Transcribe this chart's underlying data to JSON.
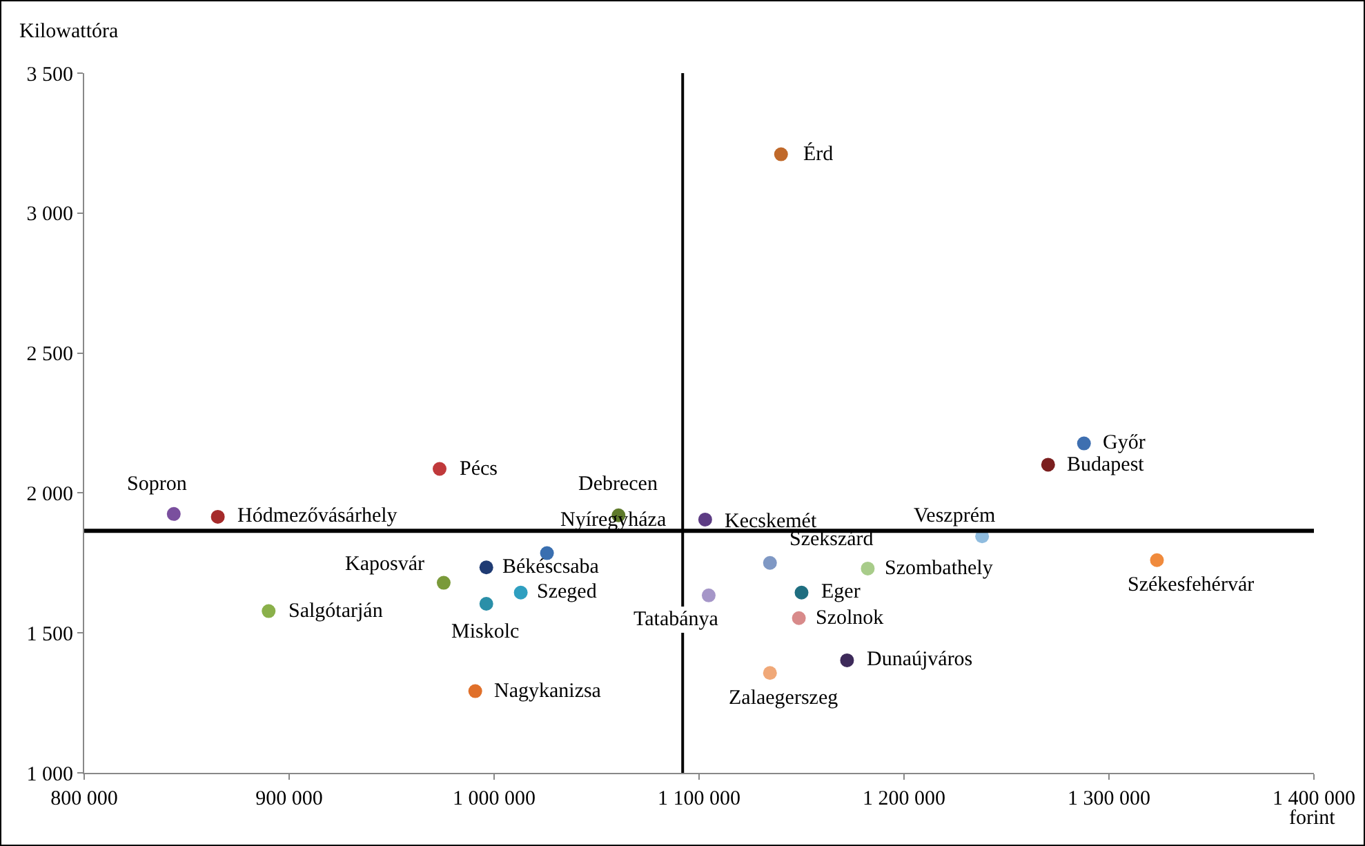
{
  "chart_data": {
    "type": "scatter",
    "xlabel": "forint",
    "ylabel": "Kilowattóra",
    "x": [
      1140000,
      1287800,
      1270300,
      1238100,
      1323400,
      843700,
      865200,
      973400,
      1060700,
      1103000,
      1025800,
      996200,
      975400,
      1013000,
      996200,
      890000,
      990800,
      1134600,
      1182300,
      1104700,
      1150000,
      1148700,
      1172200,
      1134600
    ],
    "values": [
      3210,
      2177,
      2101,
      1845,
      1760,
      1925,
      1915,
      2086,
      1920,
      1905,
      1785,
      1734,
      1679,
      1644,
      1604,
      1578,
      1292,
      1750,
      1730,
      1634,
      1644,
      1553,
      1402,
      1357
    ],
    "colors": [
      "#c0692a",
      "#3e6fb0",
      "#7b1f1f",
      "#8fbcdf",
      "#f08a3c",
      "#7a4f9e",
      "#a52a2a",
      "#c0393b",
      "#5e7a2a",
      "#5d3c84",
      "#3a6fb0",
      "#1f3b73",
      "#7a9a3a",
      "#2f9fc0",
      "#2a8fa8",
      "#8ab04a",
      "#e0702a",
      "#7f98c4",
      "#a8cc8a",
      "#a596c8",
      "#1f6e80",
      "#d88a8a",
      "#3d2a5a",
      "#f0a878"
    ],
    "annotations": [
      {
        "text": "Érd",
        "x": 1140000,
        "y": 3210
      },
      {
        "text": "Győr",
        "x": 1287800,
        "y": 2177
      },
      {
        "text": "Budapest",
        "x": 1270300,
        "y": 2101
      },
      {
        "text": "Veszprém",
        "x": 1238100,
        "y": 1845
      },
      {
        "text": "Székesfehérvár",
        "x": 1323400,
        "y": 1760
      },
      {
        "text": "Sopron",
        "x": 843700,
        "y": 1925
      },
      {
        "text": "Hódmezővásárhely",
        "x": 865200,
        "y": 1915
      },
      {
        "text": "Pécs",
        "x": 973400,
        "y": 2086
      },
      {
        "text": "Debrecen",
        "x": 1060700,
        "y": 1920
      },
      {
        "text": "Kecskemét",
        "x": 1103000,
        "y": 1905
      },
      {
        "text": "Nyíregyháza",
        "x": 1025800,
        "y": 1785
      },
      {
        "text": "Békéscsaba",
        "x": 996200,
        "y": 1734
      },
      {
        "text": "Kaposvár",
        "x": 975400,
        "y": 1679
      },
      {
        "text": "Szeged",
        "x": 1013000,
        "y": 1644
      },
      {
        "text": "Miskolc",
        "x": 996200,
        "y": 1604
      },
      {
        "text": "Salgótarján",
        "x": 890000,
        "y": 1578
      },
      {
        "text": "Nagykanizsa",
        "x": 990800,
        "y": 1292
      },
      {
        "text": "Szekszárd",
        "x": 1134600,
        "y": 1750
      },
      {
        "text": "Szombathely",
        "x": 1182300,
        "y": 1730
      },
      {
        "text": "Tatabánya",
        "x": 1104700,
        "y": 1634
      },
      {
        "text": "Eger",
        "x": 1150000,
        "y": 1644
      },
      {
        "text": "Szolnok",
        "x": 1148700,
        "y": 1553
      },
      {
        "text": "Dunaújváros",
        "x": 1172200,
        "y": 1402
      },
      {
        "text": "Zalaegerszeg",
        "x": 1134600,
        "y": 1357
      }
    ],
    "xlim": [
      800000,
      1400000
    ],
    "xticks": [
      {
        "value": 800000,
        "label": "800 000"
      },
      {
        "value": 900000,
        "label": "900 000"
      },
      {
        "value": 1000000,
        "label": "1 000 000"
      },
      {
        "value": 1100000,
        "label": "1 100 000"
      },
      {
        "value": 1200000,
        "label": "1 200 000"
      },
      {
        "value": 1300000,
        "label": "1 300 000"
      },
      {
        "value": 1400000,
        "label": "1 400 000"
      }
    ],
    "ylim": [
      1000,
      3500
    ],
    "yticks": [
      {
        "value": 1000,
        "label": "1 000"
      },
      {
        "value": 1500,
        "label": "1 500"
      },
      {
        "value": 2000,
        "label": "2 000"
      },
      {
        "value": 2500,
        "label": "2 500"
      },
      {
        "value": 3000,
        "label": "3 000"
      },
      {
        "value": 3500,
        "label": "3 500"
      }
    ],
    "ref_lines": [
      {
        "axis": "x",
        "value": 1092000,
        "color": "#000000"
      },
      {
        "axis": "y",
        "value": 1865,
        "color": "#000000"
      }
    ],
    "marker": "circle",
    "grid": false,
    "legend": false
  }
}
